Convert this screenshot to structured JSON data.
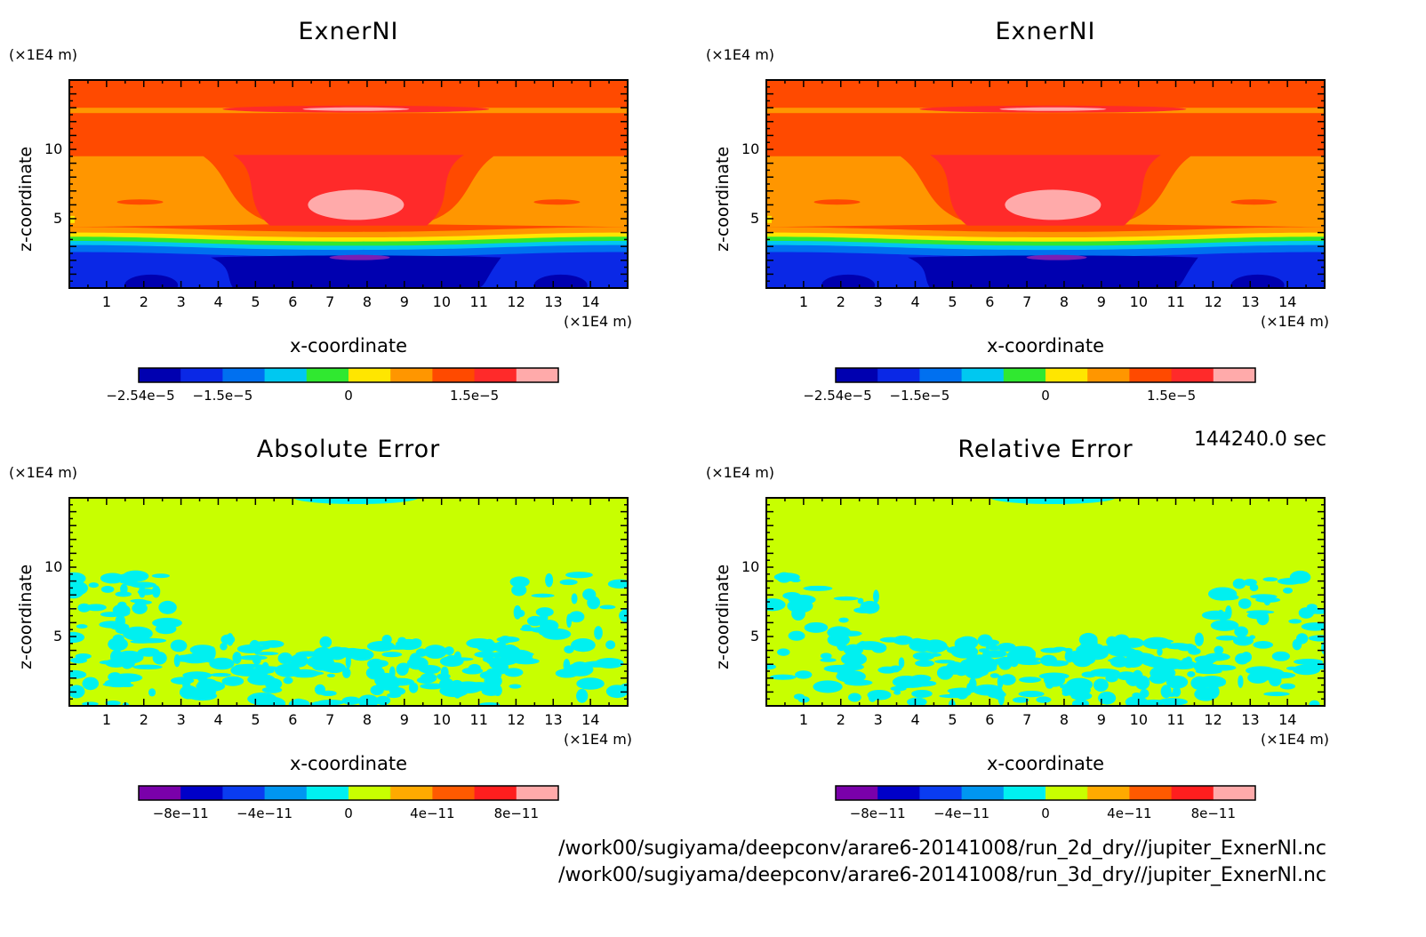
{
  "chart_data": [
    {
      "type": "heatmap",
      "title": "ExnerNI",
      "xlabel": "x-coordinate",
      "ylabel": "z-coordinate",
      "x_unit": "(×1E4 m)",
      "y_unit": "(×1E4 m)",
      "xlim": [
        0,
        15
      ],
      "ylim": [
        0,
        15
      ],
      "x_ticks": [
        "1",
        "2",
        "3",
        "4",
        "5",
        "6",
        "7",
        "8",
        "9",
        "10",
        "11",
        "12",
        "13",
        "14"
      ],
      "y_ticks": [
        "5",
        "10"
      ],
      "colorbar": {
        "colors": [
          "#0000b0",
          "#0a28e6",
          "#0070f0",
          "#00c8f0",
          "#30e830",
          "#ffe600",
          "#ff9600",
          "#ff4a00",
          "#ff2a2a",
          "#ffaaaa"
        ],
        "labels": [
          "−2.54e−5",
          "−1.5e−5",
          "0",
          "1.5e−5"
        ]
      },
      "field": "exner"
    },
    {
      "type": "heatmap",
      "title": "ExnerNI",
      "xlabel": "x-coordinate",
      "ylabel": "z-coordinate",
      "x_unit": "(×1E4 m)",
      "y_unit": "(×1E4 m)",
      "xlim": [
        0,
        15
      ],
      "ylim": [
        0,
        15
      ],
      "x_ticks": [
        "1",
        "2",
        "3",
        "4",
        "5",
        "6",
        "7",
        "8",
        "9",
        "10",
        "11",
        "12",
        "13",
        "14"
      ],
      "y_ticks": [
        "5",
        "10"
      ],
      "colorbar": {
        "colors": [
          "#0000b0",
          "#0a28e6",
          "#0070f0",
          "#00c8f0",
          "#30e830",
          "#ffe600",
          "#ff9600",
          "#ff4a00",
          "#ff2a2a",
          "#ffaaaa"
        ],
        "labels": [
          "−2.54e−5",
          "−1.5e−5",
          "0",
          "1.5e−5"
        ]
      },
      "field": "exner"
    },
    {
      "type": "heatmap",
      "title": "Absolute Error",
      "xlabel": "x-coordinate",
      "ylabel": "z-coordinate",
      "x_unit": "(×1E4 m)",
      "y_unit": "(×1E4 m)",
      "xlim": [
        0,
        15
      ],
      "ylim": [
        0,
        15
      ],
      "x_ticks": [
        "1",
        "2",
        "3",
        "4",
        "5",
        "6",
        "7",
        "8",
        "9",
        "10",
        "11",
        "12",
        "13",
        "14"
      ],
      "y_ticks": [
        "5",
        "10"
      ],
      "colorbar": {
        "colors": [
          "#7a00aa",
          "#0000c8",
          "#0a3cf0",
          "#0096f0",
          "#00f0f0",
          "#c8ff00",
          "#ffaa00",
          "#ff5a00",
          "#ff1e1e",
          "#ffaaaa"
        ],
        "labels": [
          "−8e−11",
          "−4e−11",
          "0",
          "4e−11",
          "8e−11"
        ]
      },
      "field": "error"
    },
    {
      "type": "heatmap",
      "title": "Relative Error",
      "xlabel": "x-coordinate",
      "ylabel": "z-coordinate",
      "x_unit": "(×1E4 m)",
      "y_unit": "(×1E4 m)",
      "xlim": [
        0,
        15
      ],
      "ylim": [
        0,
        15
      ],
      "x_ticks": [
        "1",
        "2",
        "3",
        "4",
        "5",
        "6",
        "7",
        "8",
        "9",
        "10",
        "11",
        "12",
        "13",
        "14"
      ],
      "y_ticks": [
        "5",
        "10"
      ],
      "colorbar": {
        "colors": [
          "#7a00aa",
          "#0000c8",
          "#0a3cf0",
          "#0096f0",
          "#00f0f0",
          "#c8ff00",
          "#ffaa00",
          "#ff5a00",
          "#ff1e1e",
          "#ffaaaa"
        ],
        "labels": [
          "−8e−11",
          "−4e−11",
          "0",
          "4e−11",
          "8e−11"
        ]
      },
      "field": "error"
    }
  ],
  "time_label": "144240.0 sec",
  "files": [
    "/work00/sugiyama/deepconv/arare6-20141008/run_2d_dry//jupiter_ExnerNl.nc",
    "/work00/sugiyama/deepconv/arare6-20141008/run_3d_dry//jupiter_ExnerNl.nc"
  ]
}
